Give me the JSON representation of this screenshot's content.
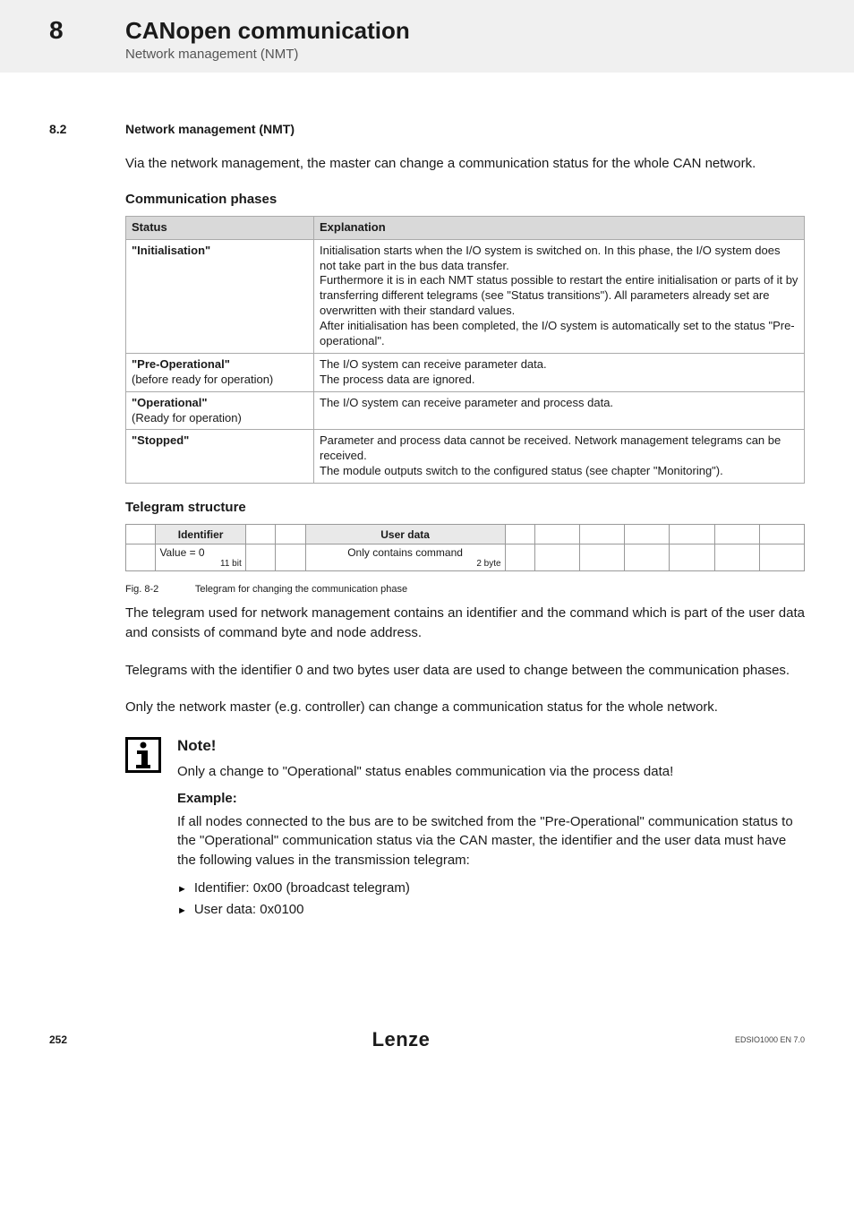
{
  "header": {
    "chapter_num": "8",
    "chapter_title": "CANopen communication",
    "chapter_sub": "Network management (NMT)"
  },
  "section": {
    "num": "8.2",
    "title": "Network management (NMT)"
  },
  "intro_para": "Via the network management, the master can change a communication status for the whole CAN network.",
  "comm_phases": {
    "heading": "Communication phases",
    "columns": [
      "Status",
      "Explanation"
    ],
    "rows": [
      {
        "status": "\"Initialisation\"",
        "status_sub": "",
        "expl": "Initialisation starts when the I/O system is switched on. In this phase, the I/O system does not take part in the bus data transfer.\nFurthermore it is in each NMT status possible to restart the entire initialisation or parts of it by transferring different telegrams (see \"Status transitions\"). All parameters already set are overwritten with their standard values.\nAfter initialisation has been completed, the I/O system is automatically set to the status \"Pre-operational\"."
      },
      {
        "status": "\"Pre-Operational\"",
        "status_sub": "(before ready for operation)",
        "expl": "The I/O system can receive parameter data.\nThe process data are ignored."
      },
      {
        "status": "\"Operational\"",
        "status_sub": "(Ready for operation)",
        "expl": "The I/O system can receive parameter and process data."
      },
      {
        "status": "\"Stopped\"",
        "status_sub": "",
        "expl": "Parameter and process data cannot be received. Network management telegrams can be received.\nThe module outputs switch to the configured status (see chapter \"Monitoring\")."
      }
    ]
  },
  "telegram": {
    "heading": "Telegram structure",
    "identifier_label": "Identifier",
    "userdata_label": "User data",
    "identifier_value": "Value = 0",
    "identifier_bits": "11 bit",
    "userdata_value": "Only contains command",
    "userdata_bytes": "2  byte"
  },
  "figcap": {
    "label": "Fig. 8-2",
    "text": "Telegram for changing the communication phase"
  },
  "para_after_fig": "The telegram used for network management contains an identifier and the command which is part of the user data and consists of command byte and node address.",
  "para_phases": "Telegrams with the identifier 0 and two bytes user data are used to change between the communication phases.",
  "para_master": "Only the network master (e.g. controller) can change a communication status for the whole network.",
  "note": {
    "head": "Note!",
    "body1": "Only a change to \"Operational\" status enables communication via the process data!",
    "example_label": "Example:",
    "body2": "If all nodes connected to the bus are to be switched from the \"Pre-Operational\" communication status to the \"Operational\" communication status via the CAN master, the identifier and the user data must have the following values in the transmission telegram:",
    "bullets": [
      "Identifier: 0x00 (broadcast telegram)",
      "User data: 0x0100"
    ]
  },
  "footer": {
    "page": "252",
    "brand": "Lenze",
    "doc": "EDSIO1000 EN 7.0"
  }
}
